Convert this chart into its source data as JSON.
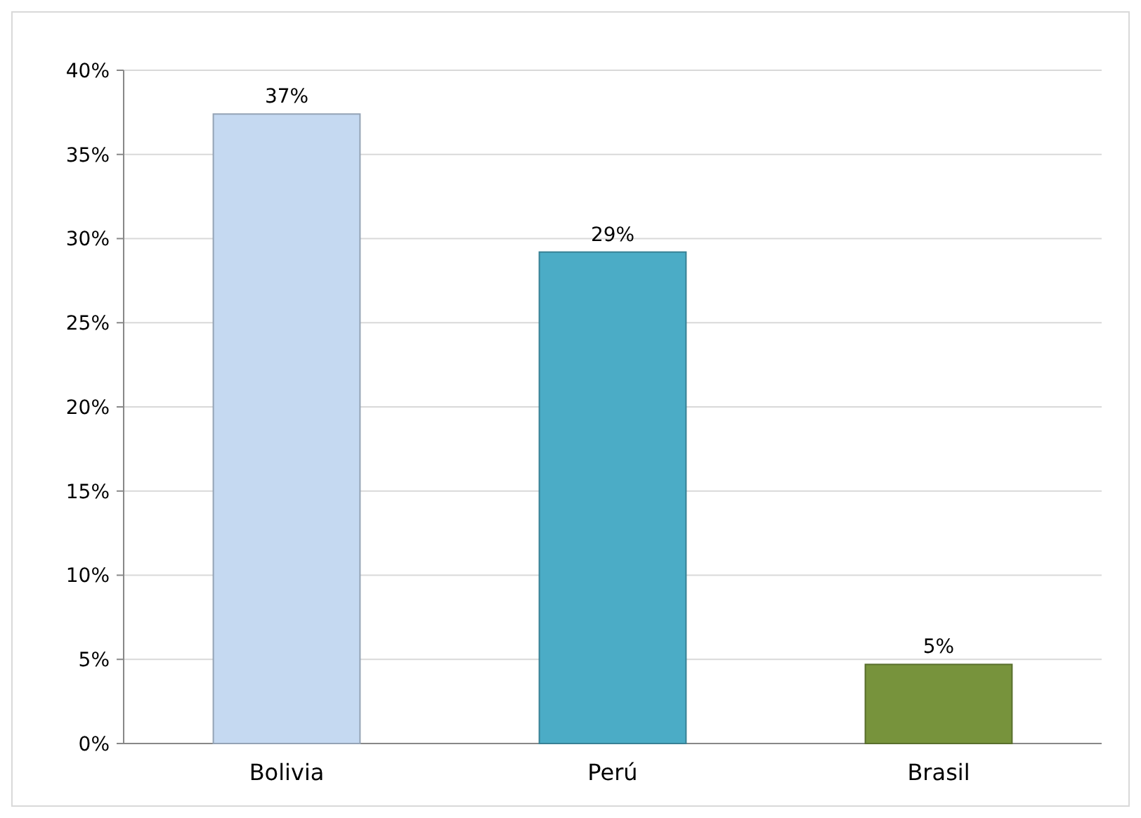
{
  "chart_data": {
    "type": "bar",
    "categories": [
      "Bolivia",
      "Perú",
      "Brasil"
    ],
    "values": [
      37.4,
      29.2,
      4.7
    ],
    "colors": [
      "#c5d9f1",
      "#4bacc6",
      "#77933c"
    ],
    "value_labels": [
      "37%",
      "29%",
      "5%"
    ],
    "ylim": [
      0,
      40
    ],
    "yticks": [
      {
        "value": 0,
        "label": "0%"
      },
      {
        "value": 5,
        "label": "5%"
      },
      {
        "value": 10,
        "label": "10%"
      },
      {
        "value": 15,
        "label": "15%"
      },
      {
        "value": 20,
        "label": "20%"
      },
      {
        "value": 25,
        "label": "25%"
      },
      {
        "value": 30,
        "label": "30%"
      },
      {
        "value": 35,
        "label": "35%"
      },
      {
        "value": 40,
        "label": "40%"
      }
    ],
    "grid": "y"
  }
}
